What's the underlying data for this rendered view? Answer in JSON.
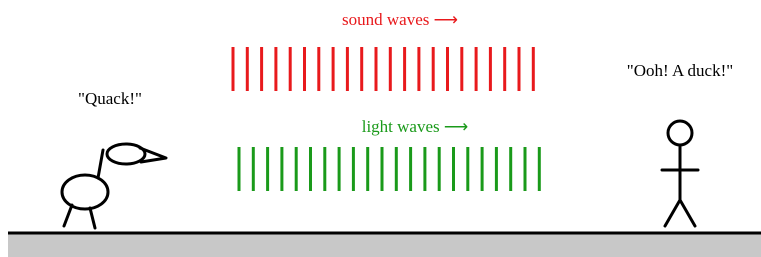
{
  "labels": {
    "sound": "sound waves ⟶",
    "light": "light waves ⟶",
    "duck_says": "\"Quack!\"",
    "person_says": "\"Ooh! A duck!\""
  }
}
